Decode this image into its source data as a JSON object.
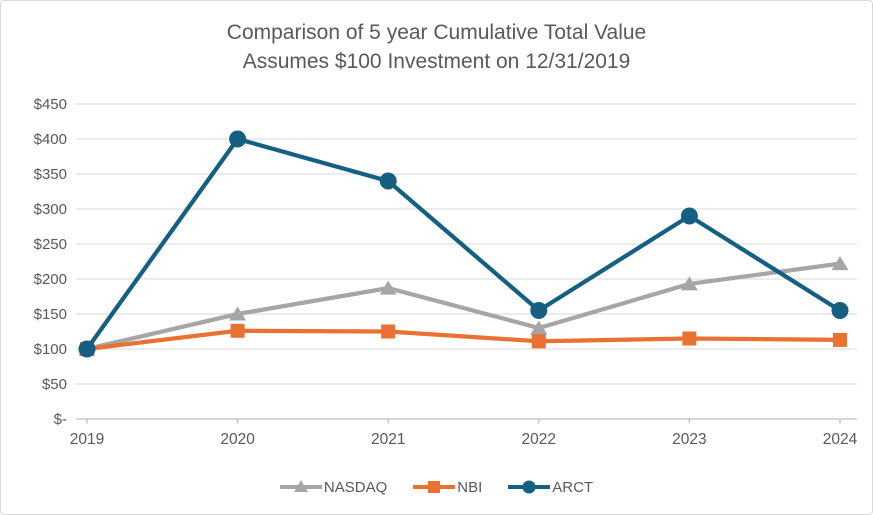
{
  "title": {
    "line1": "Comparison of 5 year Cumulative Total Value",
    "line2": "Assumes $100 Investment on 12/31/2019"
  },
  "chart_data": {
    "type": "line",
    "title": "Comparison of 5 year Cumulative Total Value",
    "subtitle": "Assumes $100 Investment on 12/31/2019",
    "categories": [
      "2019",
      "2020",
      "2021",
      "2022",
      "2023",
      "2024"
    ],
    "series": [
      {
        "name": "NASDAQ",
        "marker": "triangle",
        "color": "#A6A6A6",
        "values": [
          100,
          150,
          187,
          130,
          193,
          222
        ]
      },
      {
        "name": "NBI",
        "marker": "square",
        "color": "#E97132",
        "values": [
          100,
          126,
          125,
          111,
          115,
          113
        ]
      },
      {
        "name": "ARCT",
        "marker": "circle",
        "color": "#156082",
        "values": [
          100,
          400,
          340,
          155,
          290,
          155
        ]
      }
    ],
    "y_axis": {
      "min": 0,
      "max": 450,
      "step": 50,
      "tick_labels": [
        "$-",
        "$50",
        "$100",
        "$150",
        "$200",
        "$250",
        "$300",
        "$350",
        "$400",
        "$450"
      ]
    },
    "x_axis_label": "",
    "y_axis_label": "",
    "grid": true,
    "legend_position": "bottom",
    "ylim": [
      0,
      450
    ],
    "style": {
      "gridline_color": "#D9D9D9",
      "axis_color": "#BFBFBF",
      "tick_text_color": "#595959",
      "title_color": "#595959",
      "background": "#FFFFFF"
    }
  }
}
